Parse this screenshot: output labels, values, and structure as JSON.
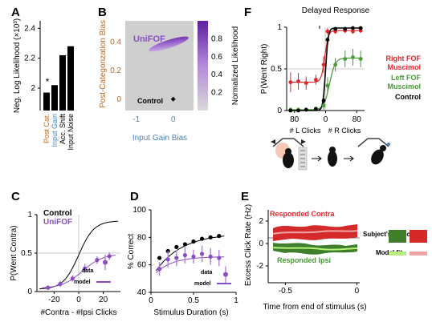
{
  "colors": {
    "control": "#000000",
    "unifof": "#8a4fc4",
    "unifof_light": "#b48ad8",
    "right_fof": "#e0262b",
    "left_fof": "#4a9a36",
    "post_cat": "#b86a2a",
    "input_gain": "#4d82b8",
    "heat_bg": "#cfcfcf",
    "fit_green": "#b6f07a",
    "fit_red": "#f0a4a4"
  },
  "panels": {
    "A": "A",
    "B": "B",
    "C": "C",
    "D": "D",
    "E": "E",
    "F": "F"
  },
  "chart_data": [
    {
      "id": "A",
      "type": "bar",
      "ylabel": "Neg. Log Likelihood (×10³)",
      "categories": [
        "Post Cat.",
        "Input Gain",
        "Acc. Shift",
        "Input Noise"
      ],
      "values": [
        1.97,
        2.02,
        2.22,
        2.28
      ],
      "ylim": [
        1.85,
        2.45
      ],
      "yticks": [
        "2",
        "2.2",
        "2.4"
      ],
      "ytick_values": [
        2.0,
        2.2,
        2.4
      ],
      "annotation": "*"
    },
    {
      "id": "B",
      "type": "heatmap",
      "xlabel": "Input Gain Bias",
      "ylabel": "Post-Categorization Bias",
      "colorbar_label": "Normalized Likelihood",
      "xticks": [
        "-1",
        "0"
      ],
      "xtick_values": [
        -1,
        0
      ],
      "yticks": [
        "0",
        "0.2",
        "0.4"
      ],
      "ytick_values": [
        0,
        0.2,
        0.4
      ],
      "colorbar_ticks": [
        "0.2",
        "0.4",
        "0.6",
        "0.8"
      ],
      "colorbar_tick_values": [
        0.2,
        0.4,
        0.6,
        0.8
      ],
      "xlim": [
        -1.3,
        0.55
      ],
      "ylim": [
        -0.08,
        0.55
      ],
      "labels": {
        "unifof": "UniFOF",
        "control": "Control"
      },
      "control_point": [
        0.0,
        0.0
      ]
    },
    {
      "id": "C",
      "type": "line",
      "xlabel": "#Contra - #Ipsi Clicks",
      "ylabel": "P(Went Contra)",
      "xticks": [
        "-20",
        "0",
        "20"
      ],
      "xtick_values": [
        -20,
        0,
        20
      ],
      "yticks": [
        "0",
        "0.5",
        "1"
      ],
      "ytick_values": [
        0,
        0.5,
        1
      ],
      "xlim": [
        -34,
        34
      ],
      "ylim": [
        0,
        1
      ],
      "legend": [
        "Control",
        "UniFOF"
      ],
      "key": {
        "data": "data",
        "model": "model"
      },
      "series": [
        {
          "name": "UniFOF",
          "x": [
            -25,
            -15,
            -5,
            5,
            15,
            25
          ],
          "y": [
            0.05,
            0.1,
            0.17,
            0.3,
            0.41,
            0.46
          ],
          "err": [
            0.03,
            0.04,
            0.04,
            0.06,
            0.05,
            0.05
          ]
        }
      ],
      "extra_point": {
        "y": 0.38,
        "err": 0.1
      }
    },
    {
      "id": "D",
      "type": "line",
      "xlabel": "Stimulus Duration (s)",
      "ylabel": "% Correct",
      "xticks": [
        "0",
        "0.5",
        "1"
      ],
      "xtick_values": [
        0,
        0.5,
        1
      ],
      "yticks": [
        "40",
        "60",
        "80",
        "100"
      ],
      "ytick_values": [
        40,
        60,
        80,
        100
      ],
      "xlim": [
        0,
        1
      ],
      "ylim": [
        40,
        100
      ],
      "key": {
        "data": "data",
        "model": "model"
      },
      "series": [
        {
          "name": "Control",
          "x": [
            0.1,
            0.2,
            0.3,
            0.4,
            0.5,
            0.6,
            0.7,
            0.8
          ],
          "y": [
            65,
            70,
            73,
            75,
            77,
            79,
            80,
            81
          ],
          "err": [
            1,
            1,
            1,
            1,
            1,
            1,
            1,
            1
          ]
        },
        {
          "name": "UniFOF",
          "x": [
            0.1,
            0.2,
            0.3,
            0.4,
            0.5,
            0.6,
            0.7,
            0.8
          ],
          "y": [
            57,
            64,
            65,
            67,
            66,
            68,
            66,
            65
          ],
          "err": [
            5,
            6,
            6,
            6,
            5,
            6,
            6,
            6
          ]
        }
      ],
      "extra_point": {
        "y": 53,
        "err": 6
      }
    },
    {
      "id": "E",
      "type": "area",
      "xlabel": "Time from end of stimulus (s)",
      "ylabel": "Excess Click Rate (Hz)",
      "xticks": [
        "-0.5",
        "0"
      ],
      "xtick_values": [
        -0.5,
        0
      ],
      "yticks": [
        "-2",
        "0",
        "2"
      ],
      "ytick_values": [
        -2,
        0,
        2
      ],
      "xlim": [
        -0.62,
        0.02
      ],
      "ylim": [
        -3.5,
        3
      ],
      "labels": {
        "contra": "Responded Contra",
        "ipsi": "Responded Ipsi"
      },
      "legend": {
        "subject": "Subject's response",
        "model": "Model fit"
      }
    },
    {
      "id": "F",
      "type": "line",
      "title": "Delayed Response",
      "xlabel_left": "# L Clicks",
      "xlabel_right": "# R Clicks",
      "ylabel": "P(Went Right)",
      "xticks": [
        "80",
        "0",
        "80"
      ],
      "xtick_values": [
        -80,
        0,
        80
      ],
      "yticks": [
        "0",
        "0.5",
        "1"
      ],
      "ytick_values": [
        0,
        0.5,
        1
      ],
      "xlim": [
        -100,
        100
      ],
      "ylim": [
        0,
        1
      ],
      "legend": [
        "Right FOF Muscimol",
        "Left FOF Muscimol",
        "Control"
      ],
      "series": [
        {
          "name": "Right FOF Muscimol",
          "x": [
            -90,
            -70,
            -50,
            -25,
            -5,
            5,
            25,
            50,
            70,
            90
          ],
          "y": [
            0.34,
            0.35,
            0.33,
            0.37,
            0.55,
            0.95,
            0.95,
            0.96,
            0.95,
            0.96
          ],
          "err": [
            0.12,
            0.1,
            0.08,
            0.06,
            0.1,
            0.04,
            0.03,
            0.03,
            0.03,
            0.03
          ]
        },
        {
          "name": "Left FOF Muscimol",
          "x": [
            -90,
            -70,
            -50,
            -25,
            -5,
            5,
            25,
            50,
            70,
            90
          ],
          "y": [
            0.01,
            0.01,
            0.01,
            0.02,
            0.06,
            0.3,
            0.55,
            0.62,
            0.64,
            0.62
          ],
          "err": [
            0.01,
            0.01,
            0.01,
            0.02,
            0.05,
            0.1,
            0.08,
            0.1,
            0.1,
            0.1
          ]
        },
        {
          "name": "Control",
          "x": [
            -90,
            -70,
            -50,
            -25,
            -5,
            5,
            25,
            50,
            70,
            90
          ],
          "y": [
            0.0,
            0.0,
            0.01,
            0.02,
            0.12,
            0.85,
            0.98,
            0.98,
            0.99,
            0.99
          ],
          "err": [
            0.01,
            0.01,
            0.01,
            0.01,
            0.03,
            0.03,
            0.01,
            0.01,
            0.01,
            0.01
          ]
        }
      ]
    }
  ]
}
